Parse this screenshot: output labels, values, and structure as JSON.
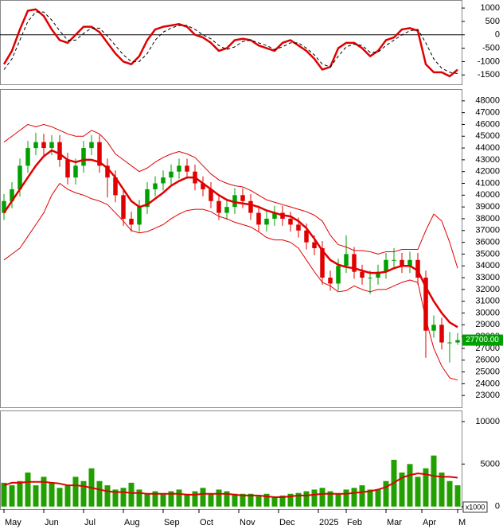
{
  "chart_data": [
    {
      "type": "line",
      "x": [
        0,
        1,
        2,
        3,
        4,
        5,
        6,
        7,
        8,
        9,
        10,
        11,
        12,
        13,
        14,
        15,
        16,
        17,
        18,
        19,
        20,
        21,
        22,
        23,
        24,
        25,
        26,
        27,
        28,
        29,
        30,
        31,
        32,
        33,
        34,
        35,
        36,
        37,
        38,
        39,
        40,
        41,
        42,
        43,
        44,
        45,
        46,
        47,
        48,
        49,
        50,
        51,
        52,
        53,
        54,
        55,
        56,
        57
      ],
      "xlim": [
        -0.5,
        57.5
      ],
      "ylim": [
        -1850,
        1300
      ],
      "yticks": [
        1000,
        500,
        0,
        -500,
        -1000,
        -1500
      ],
      "reference_line": 0,
      "series": [
        {
          "color": "#e00000",
          "width": 2.5,
          "dash": false,
          "values": [
            -1100,
            -600,
            200,
            900,
            950,
            700,
            200,
            -200,
            -300,
            0,
            300,
            300,
            100,
            -300,
            -700,
            -1000,
            -1100,
            -800,
            -200,
            200,
            300,
            350,
            400,
            300,
            0,
            -100,
            -300,
            -600,
            -500,
            -200,
            -150,
            -200,
            -400,
            -500,
            -600,
            -300,
            -200,
            -400,
            -600,
            -900,
            -1300,
            -1200,
            -500,
            -300,
            -300,
            -500,
            -800,
            -600,
            -200,
            -100,
            200,
            250,
            150,
            -1100,
            -1400,
            -1400,
            -1550,
            -1300
          ]
        },
        {
          "color": "#000000",
          "width": 1,
          "dash": true,
          "values": [
            -1300,
            -900,
            -200,
            500,
            850,
            850,
            550,
            150,
            -200,
            -200,
            50,
            250,
            250,
            -50,
            -400,
            -750,
            -1000,
            -1000,
            -700,
            -200,
            100,
            250,
            350,
            350,
            200,
            0,
            -150,
            -400,
            -550,
            -450,
            -250,
            -200,
            -300,
            -400,
            -550,
            -450,
            -300,
            -300,
            -500,
            -750,
            -1100,
            -1200,
            -800,
            -450,
            -350,
            -400,
            -650,
            -650,
            -400,
            -200,
            0,
            150,
            200,
            -300,
            -900,
            -1250,
            -1400,
            -1450
          ]
        }
      ]
    },
    {
      "type": "candlestick",
      "x": [
        0,
        1,
        2,
        3,
        4,
        5,
        6,
        7,
        8,
        9,
        10,
        11,
        12,
        13,
        14,
        15,
        16,
        17,
        18,
        19,
        20,
        21,
        22,
        23,
        24,
        25,
        26,
        27,
        28,
        29,
        30,
        31,
        32,
        33,
        34,
        35,
        36,
        37,
        38,
        39,
        40,
        41,
        42,
        43,
        44,
        45,
        46,
        47,
        48,
        49,
        50,
        51,
        52,
        53,
        54,
        55,
        56,
        57
      ],
      "xlim": [
        -0.5,
        57.5
      ],
      "ylim": [
        22000,
        49000
      ],
      "yticks": [
        23000,
        24000,
        25000,
        26000,
        27000,
        28000,
        29000,
        30000,
        31000,
        32000,
        33000,
        34000,
        35000,
        36000,
        37000,
        38000,
        39000,
        40000,
        41000,
        42000,
        43000,
        44000,
        45000,
        46000,
        47000,
        48000
      ],
      "up_color": "#00a000",
      "down_color": "#e00000",
      "open": [
        38500,
        39500,
        40500,
        42500,
        44000,
        44500,
        44000,
        44500,
        43000,
        41500,
        42500,
        44000,
        44500,
        42500,
        41500,
        40000,
        38000,
        37500,
        39000,
        40500,
        41000,
        41500,
        42000,
        42500,
        42000,
        41000,
        40500,
        39500,
        38500,
        39000,
        40000,
        39500,
        38500,
        37500,
        38000,
        38500,
        38000,
        37500,
        37000,
        36000,
        35500,
        33000,
        32500,
        34000,
        35000,
        33500,
        33000,
        33000,
        33500,
        34500,
        34500,
        34000,
        34500,
        33000,
        28500,
        29000,
        27500,
        27500
      ],
      "high": [
        40100,
        41100,
        43100,
        44600,
        45300,
        45200,
        45100,
        45100,
        43600,
        43100,
        44600,
        45100,
        45100,
        43100,
        42100,
        40600,
        38600,
        39600,
        41100,
        41600,
        42100,
        42600,
        43100,
        43100,
        42600,
        41600,
        41100,
        40100,
        39600,
        40600,
        40600,
        40100,
        39100,
        38600,
        39100,
        39100,
        38600,
        38100,
        37600,
        36600,
        36100,
        33600,
        34600,
        36600,
        35600,
        34100,
        33600,
        34100,
        35100,
        35500,
        35100,
        35200,
        35100,
        33600,
        29800,
        29600,
        28400,
        28300
      ],
      "low": [
        37900,
        38900,
        39900,
        41900,
        43400,
        43400,
        43400,
        42400,
        40900,
        40900,
        41900,
        43400,
        41900,
        39800,
        39400,
        37400,
        36900,
        36900,
        38400,
        39900,
        40400,
        40900,
        41400,
        41400,
        40400,
        39900,
        38900,
        37900,
        37900,
        38400,
        38900,
        37900,
        36900,
        36900,
        37400,
        37400,
        36900,
        36400,
        35400,
        34900,
        32400,
        31900,
        31900,
        33400,
        32900,
        32400,
        31600,
        32400,
        32900,
        33900,
        33400,
        33400,
        32400,
        26200,
        27900,
        26900,
        25800,
        27300
      ],
      "close": [
        39500,
        40500,
        42500,
        44000,
        44500,
        44000,
        44500,
        43000,
        41500,
        42500,
        44000,
        44500,
        42500,
        41500,
        40000,
        38000,
        37500,
        39000,
        40500,
        41000,
        41500,
        42000,
        42500,
        42000,
        41000,
        40500,
        39500,
        38500,
        39000,
        40000,
        39500,
        38500,
        37500,
        38000,
        38500,
        38000,
        37500,
        37000,
        36000,
        35500,
        33000,
        32500,
        34000,
        35000,
        33500,
        33000,
        33000,
        33500,
        34500,
        34500,
        34000,
        34500,
        33000,
        28500,
        29000,
        27500,
        27500,
        27700
      ],
      "lines": [
        {
          "color": "#e00000",
          "width": 1,
          "values": [
            44500,
            45000,
            45500,
            46000,
            45800,
            46000,
            45800,
            45500,
            45200,
            45000,
            45000,
            45500,
            45200,
            44500,
            43500,
            43000,
            42500,
            42000,
            42300,
            42800,
            43200,
            43500,
            43700,
            43500,
            43200,
            42500,
            41800,
            41300,
            41000,
            40800,
            40700,
            40400,
            40000,
            39600,
            39400,
            39200,
            39000,
            38800,
            38600,
            38300,
            37800,
            36600,
            35800,
            35600,
            35300,
            35300,
            35200,
            35000,
            35200,
            35200,
            35400,
            35400,
            35400,
            37000,
            38400,
            37800,
            36000,
            33800
          ]
        },
        {
          "color": "#e00000",
          "width": 2.5,
          "values": [
            38500,
            39500,
            40500,
            41500,
            42500,
            43300,
            43800,
            43500,
            43000,
            42800,
            43000,
            43000,
            42800,
            42300,
            41500,
            40500,
            39500,
            39000,
            39200,
            39700,
            40200,
            40800,
            41200,
            41500,
            41500,
            41000,
            40500,
            40000,
            39600,
            39400,
            39300,
            39200,
            39000,
            38700,
            38500,
            38300,
            38200,
            37800,
            37200,
            36300,
            35300,
            34500,
            34100,
            33900,
            33800,
            33600,
            33400,
            33400,
            33500,
            33800,
            34000,
            34000,
            33600,
            32200,
            31000,
            30000,
            29200,
            28800
          ]
        },
        {
          "color": "#e00000",
          "width": 1,
          "values": [
            34500,
            35000,
            35500,
            36500,
            37500,
            38500,
            40000,
            41000,
            40500,
            40200,
            40000,
            39700,
            39500,
            39200,
            38500,
            37800,
            37000,
            36800,
            36900,
            37200,
            37500,
            38000,
            38400,
            38700,
            38800,
            38800,
            38600,
            38200,
            38000,
            37700,
            37500,
            37300,
            36900,
            36400,
            36200,
            36200,
            36000,
            35500,
            34500,
            33500,
            32600,
            32300,
            31800,
            31900,
            32300,
            32000,
            31800,
            32000,
            32000,
            32300,
            32600,
            32800,
            32600,
            29500,
            27000,
            25500,
            24500,
            24300
          ]
        }
      ],
      "last_price": {
        "value": 27700,
        "label": "27700.00"
      },
      "last_price_color": "#00a000"
    },
    {
      "type": "bar",
      "x": [
        0,
        1,
        2,
        3,
        4,
        5,
        6,
        7,
        8,
        9,
        10,
        11,
        12,
        13,
        14,
        15,
        16,
        17,
        18,
        19,
        20,
        21,
        22,
        23,
        24,
        25,
        26,
        27,
        28,
        29,
        30,
        31,
        32,
        33,
        34,
        35,
        36,
        37,
        38,
        39,
        40,
        41,
        42,
        43,
        44,
        45,
        46,
        47,
        48,
        49,
        50,
        51,
        52,
        53,
        54,
        55,
        56,
        57
      ],
      "xlim": [
        -0.5,
        57.5
      ],
      "xticks": [
        {
          "value": 0,
          "label": "May"
        },
        {
          "value": 5,
          "label": "Jun"
        },
        {
          "value": 10,
          "label": "Jul"
        },
        {
          "value": 15,
          "label": "Aug"
        },
        {
          "value": 20,
          "label": "Sep"
        },
        {
          "value": 24.5,
          "label": "Oct"
        },
        {
          "value": 29.5,
          "label": "Nov"
        },
        {
          "value": 34.5,
          "label": "Dec"
        },
        {
          "value": 39.5,
          "label": "2025"
        },
        {
          "value": 43,
          "label": "Feb"
        },
        {
          "value": 48,
          "label": "Mar"
        },
        {
          "value": 52.5,
          "label": "Apr"
        },
        {
          "value": 57,
          "label": "M"
        }
      ],
      "ylim": [
        -300,
        11300
      ],
      "yticks": [
        0,
        5000,
        10000
      ],
      "unit_label": "x1000",
      "color": "#22a000",
      "values": [
        2800,
        2500,
        3000,
        4000,
        2500,
        3500,
        2800,
        2200,
        2500,
        3500,
        3000,
        4500,
        3000,
        2500,
        2000,
        2200,
        2800,
        2000,
        1500,
        1800,
        1500,
        1800,
        2000,
        1500,
        1800,
        2200,
        1500,
        2000,
        1800,
        1500,
        1500,
        1500,
        1200,
        1500,
        1200,
        1300,
        1500,
        1600,
        1800,
        2000,
        2200,
        1800,
        1500,
        2000,
        2200,
        2500,
        2000,
        2000,
        3000,
        5500,
        4000,
        5000,
        3500,
        4500,
        6000,
        4000,
        3000,
        2500
      ],
      "average": {
        "color": "#e00000",
        "values": [
          2500,
          2800,
          2800,
          2900,
          2900,
          2900,
          2800,
          2700,
          2500,
          2500,
          2400,
          2200,
          2000,
          1800,
          1700,
          1700,
          1600,
          1600,
          1500,
          1500,
          1500,
          1500,
          1500,
          1400,
          1400,
          1500,
          1500,
          1500,
          1500,
          1400,
          1300,
          1300,
          1300,
          1200,
          1100,
          1100,
          1200,
          1300,
          1300,
          1400,
          1500,
          1500,
          1500,
          1500,
          1600,
          1700,
          1800,
          2000,
          2300,
          2800,
          3400,
          3700,
          3900,
          3800,
          3600,
          3500,
          3500,
          3400
        ]
      }
    }
  ]
}
